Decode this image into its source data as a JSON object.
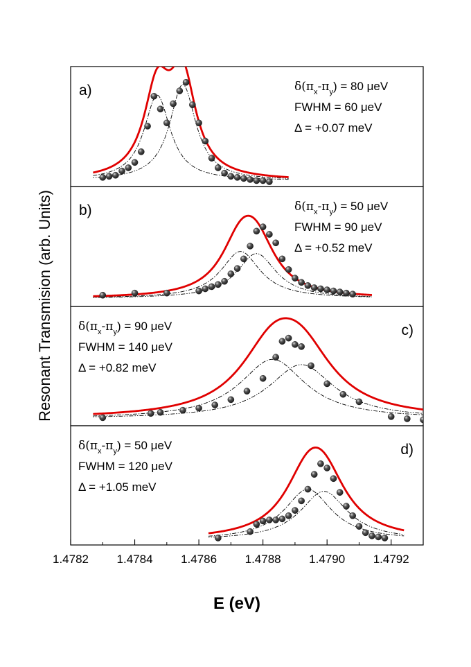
{
  "chart_data": {
    "type": "scatter",
    "xlabel": "E (eV)",
    "ylabel": "Resonant Transmision (arb. Units)",
    "xlim": [
      1.4782,
      1.4793
    ],
    "x_ticks": [
      1.4782,
      1.4784,
      1.4786,
      1.4788,
      1.479,
      1.4792
    ],
    "x_tick_labels": [
      "1.4782",
      "1.4784",
      "1.4786",
      "1.4788",
      "1.4790",
      "1.4792"
    ],
    "colors": {
      "fit": "#e00000",
      "data": "#1a1a1a",
      "component": "#000000"
    },
    "panels": [
      {
        "id": "a",
        "label": "a)",
        "label_pos": "top-left",
        "annotation_pos": "top-right",
        "annotations": {
          "splitting_prefix": "δ(π",
          "splitting_sub_x": "x",
          "splitting_mid": "-π",
          "splitting_sub_y": "y",
          "splitting_value": ") = 80 μeV",
          "fwhm": "FWHM = 60 μeV",
          "delta": "Δ  = +0.07 meV"
        },
        "fit": {
          "baseline": 0.01,
          "peaks": [
            {
              "center": 1.47847,
              "width": 0.0001,
              "height": 0.8
            },
            {
              "center": 1.47855,
              "width": 0.0001,
              "height": 0.9
            }
          ]
        },
        "ymax": 1.0,
        "points": [
          [
            1.4783,
            0.04
          ],
          [
            1.47832,
            0.05
          ],
          [
            1.47834,
            0.06
          ],
          [
            1.47836,
            0.1
          ],
          [
            1.47838,
            0.13
          ],
          [
            1.4784,
            0.18
          ],
          [
            1.47842,
            0.28
          ],
          [
            1.47844,
            0.52
          ],
          [
            1.47846,
            0.8
          ],
          [
            1.47848,
            0.68
          ],
          [
            1.4785,
            0.55
          ],
          [
            1.47852,
            0.73
          ],
          [
            1.47854,
            0.85
          ],
          [
            1.47856,
            0.93
          ],
          [
            1.47858,
            0.72
          ],
          [
            1.4786,
            0.55
          ],
          [
            1.47862,
            0.38
          ],
          [
            1.47864,
            0.22
          ],
          [
            1.47866,
            0.13
          ],
          [
            1.47868,
            0.08
          ],
          [
            1.4787,
            0.05
          ],
          [
            1.47872,
            0.04
          ],
          [
            1.47874,
            0.03
          ],
          [
            1.47876,
            0.02
          ],
          [
            1.47878,
            0.01
          ],
          [
            1.4788,
            0.01
          ],
          [
            1.47882,
            0.0
          ]
        ]
      },
      {
        "id": "b",
        "label": "b)",
        "label_pos": "top-left",
        "annotation_pos": "top-right",
        "annotations": {
          "splitting_prefix": "δ(π",
          "splitting_sub_x": "x",
          "splitting_mid": "-π",
          "splitting_sub_y": "y",
          "splitting_value": ") = 50 μeV",
          "fwhm": "FWHM = 90 μeV",
          "delta": "Δ  = +0.52 meV"
        },
        "fit": {
          "baseline": 0.03,
          "peaks": [
            {
              "center": 1.47873,
              "width": 0.00015,
              "height": 0.44
            },
            {
              "center": 1.47878,
              "width": 0.00015,
              "height": 0.42
            }
          ]
        },
        "ymax": 1.0,
        "points": [
          [
            1.4783,
            0.06
          ],
          [
            1.4784,
            0.08
          ],
          [
            1.4785,
            0.08
          ],
          [
            1.4786,
            0.1
          ],
          [
            1.47862,
            0.12
          ],
          [
            1.47864,
            0.14
          ],
          [
            1.47866,
            0.16
          ],
          [
            1.47868,
            0.19
          ],
          [
            1.4787,
            0.26
          ],
          [
            1.47872,
            0.31
          ],
          [
            1.47874,
            0.4
          ],
          [
            1.47876,
            0.52
          ],
          [
            1.47878,
            0.66
          ],
          [
            1.4788,
            0.7
          ],
          [
            1.47882,
            0.63
          ],
          [
            1.47884,
            0.55
          ],
          [
            1.47886,
            0.4
          ],
          [
            1.47888,
            0.3
          ],
          [
            1.4789,
            0.22
          ],
          [
            1.47892,
            0.18
          ],
          [
            1.47894,
            0.15
          ],
          [
            1.47896,
            0.13
          ],
          [
            1.47898,
            0.12
          ],
          [
            1.479,
            0.11
          ],
          [
            1.47902,
            0.1
          ],
          [
            1.47904,
            0.09
          ],
          [
            1.47906,
            0.08
          ],
          [
            1.47908,
            0.07
          ]
        ]
      },
      {
        "id": "c",
        "label": "c)",
        "label_pos": "top-right",
        "annotation_pos": "top-left",
        "annotations": {
          "splitting_prefix": "δ(π",
          "splitting_sub_x": "x",
          "splitting_mid": "-π",
          "splitting_sub_y": "y",
          "splitting_value": ") = 90 μeV",
          "fwhm": "FWHM = 140 μeV",
          "delta": "Δ  = +0.82 meV"
        },
        "fit": {
          "baseline": 0.02,
          "peaks": [
            {
              "center": 1.47883,
              "width": 0.00025,
              "height": 0.56
            },
            {
              "center": 1.47892,
              "width": 0.00025,
              "height": 0.51
            }
          ]
        },
        "ymax": 1.0,
        "points": [
          [
            1.4783,
            0.03
          ],
          [
            1.47845,
            0.07
          ],
          [
            1.47848,
            0.08
          ],
          [
            1.47855,
            0.1
          ],
          [
            1.4786,
            0.12
          ],
          [
            1.47865,
            0.15
          ],
          [
            1.4787,
            0.2
          ],
          [
            1.47875,
            0.28
          ],
          [
            1.4788,
            0.4
          ],
          [
            1.47884,
            0.6
          ],
          [
            1.47886,
            0.75
          ],
          [
            1.47888,
            0.78
          ],
          [
            1.4789,
            0.72
          ],
          [
            1.47892,
            0.7
          ],
          [
            1.47895,
            0.52
          ],
          [
            1.479,
            0.35
          ],
          [
            1.47905,
            0.25
          ],
          [
            1.4791,
            0.18
          ],
          [
            1.4792,
            0.04
          ],
          [
            1.47925,
            0.02
          ],
          [
            1.4793,
            0.01
          ]
        ]
      },
      {
        "id": "d",
        "label": "d)",
        "label_pos": "top-right",
        "annotation_pos": "top-left",
        "annotations": {
          "splitting_prefix": "δ(π",
          "splitting_sub_x": "x",
          "splitting_mid": "-π",
          "splitting_sub_y": "y",
          "splitting_value": ") = 50 μeV",
          "fwhm": "FWHM = 120 μeV",
          "delta": "Δ  = +1.05 meV"
        },
        "fit": {
          "baseline": 0.0,
          "peaks": [
            {
              "center": 1.47894,
              "width": 0.00018,
              "height": 0.48
            },
            {
              "center": 1.47899,
              "width": 0.00018,
              "height": 0.46
            }
          ]
        },
        "ymax": 1.0,
        "points": [
          [
            1.47866,
            0.02
          ],
          [
            1.47876,
            0.08
          ],
          [
            1.47878,
            0.15
          ],
          [
            1.4788,
            0.18
          ],
          [
            1.47882,
            0.19
          ],
          [
            1.47884,
            0.19
          ],
          [
            1.47886,
            0.2
          ],
          [
            1.47888,
            0.23
          ],
          [
            1.4789,
            0.28
          ],
          [
            1.47892,
            0.37
          ],
          [
            1.47894,
            0.48
          ],
          [
            1.47896,
            0.62
          ],
          [
            1.47898,
            0.72
          ],
          [
            1.479,
            0.68
          ],
          [
            1.47902,
            0.58
          ],
          [
            1.47904,
            0.45
          ],
          [
            1.47906,
            0.32
          ],
          [
            1.47908,
            0.23
          ],
          [
            1.4791,
            0.13
          ],
          [
            1.47912,
            0.07
          ],
          [
            1.47914,
            0.04
          ],
          [
            1.47916,
            0.03
          ],
          [
            1.47918,
            0.02
          ]
        ]
      }
    ]
  }
}
